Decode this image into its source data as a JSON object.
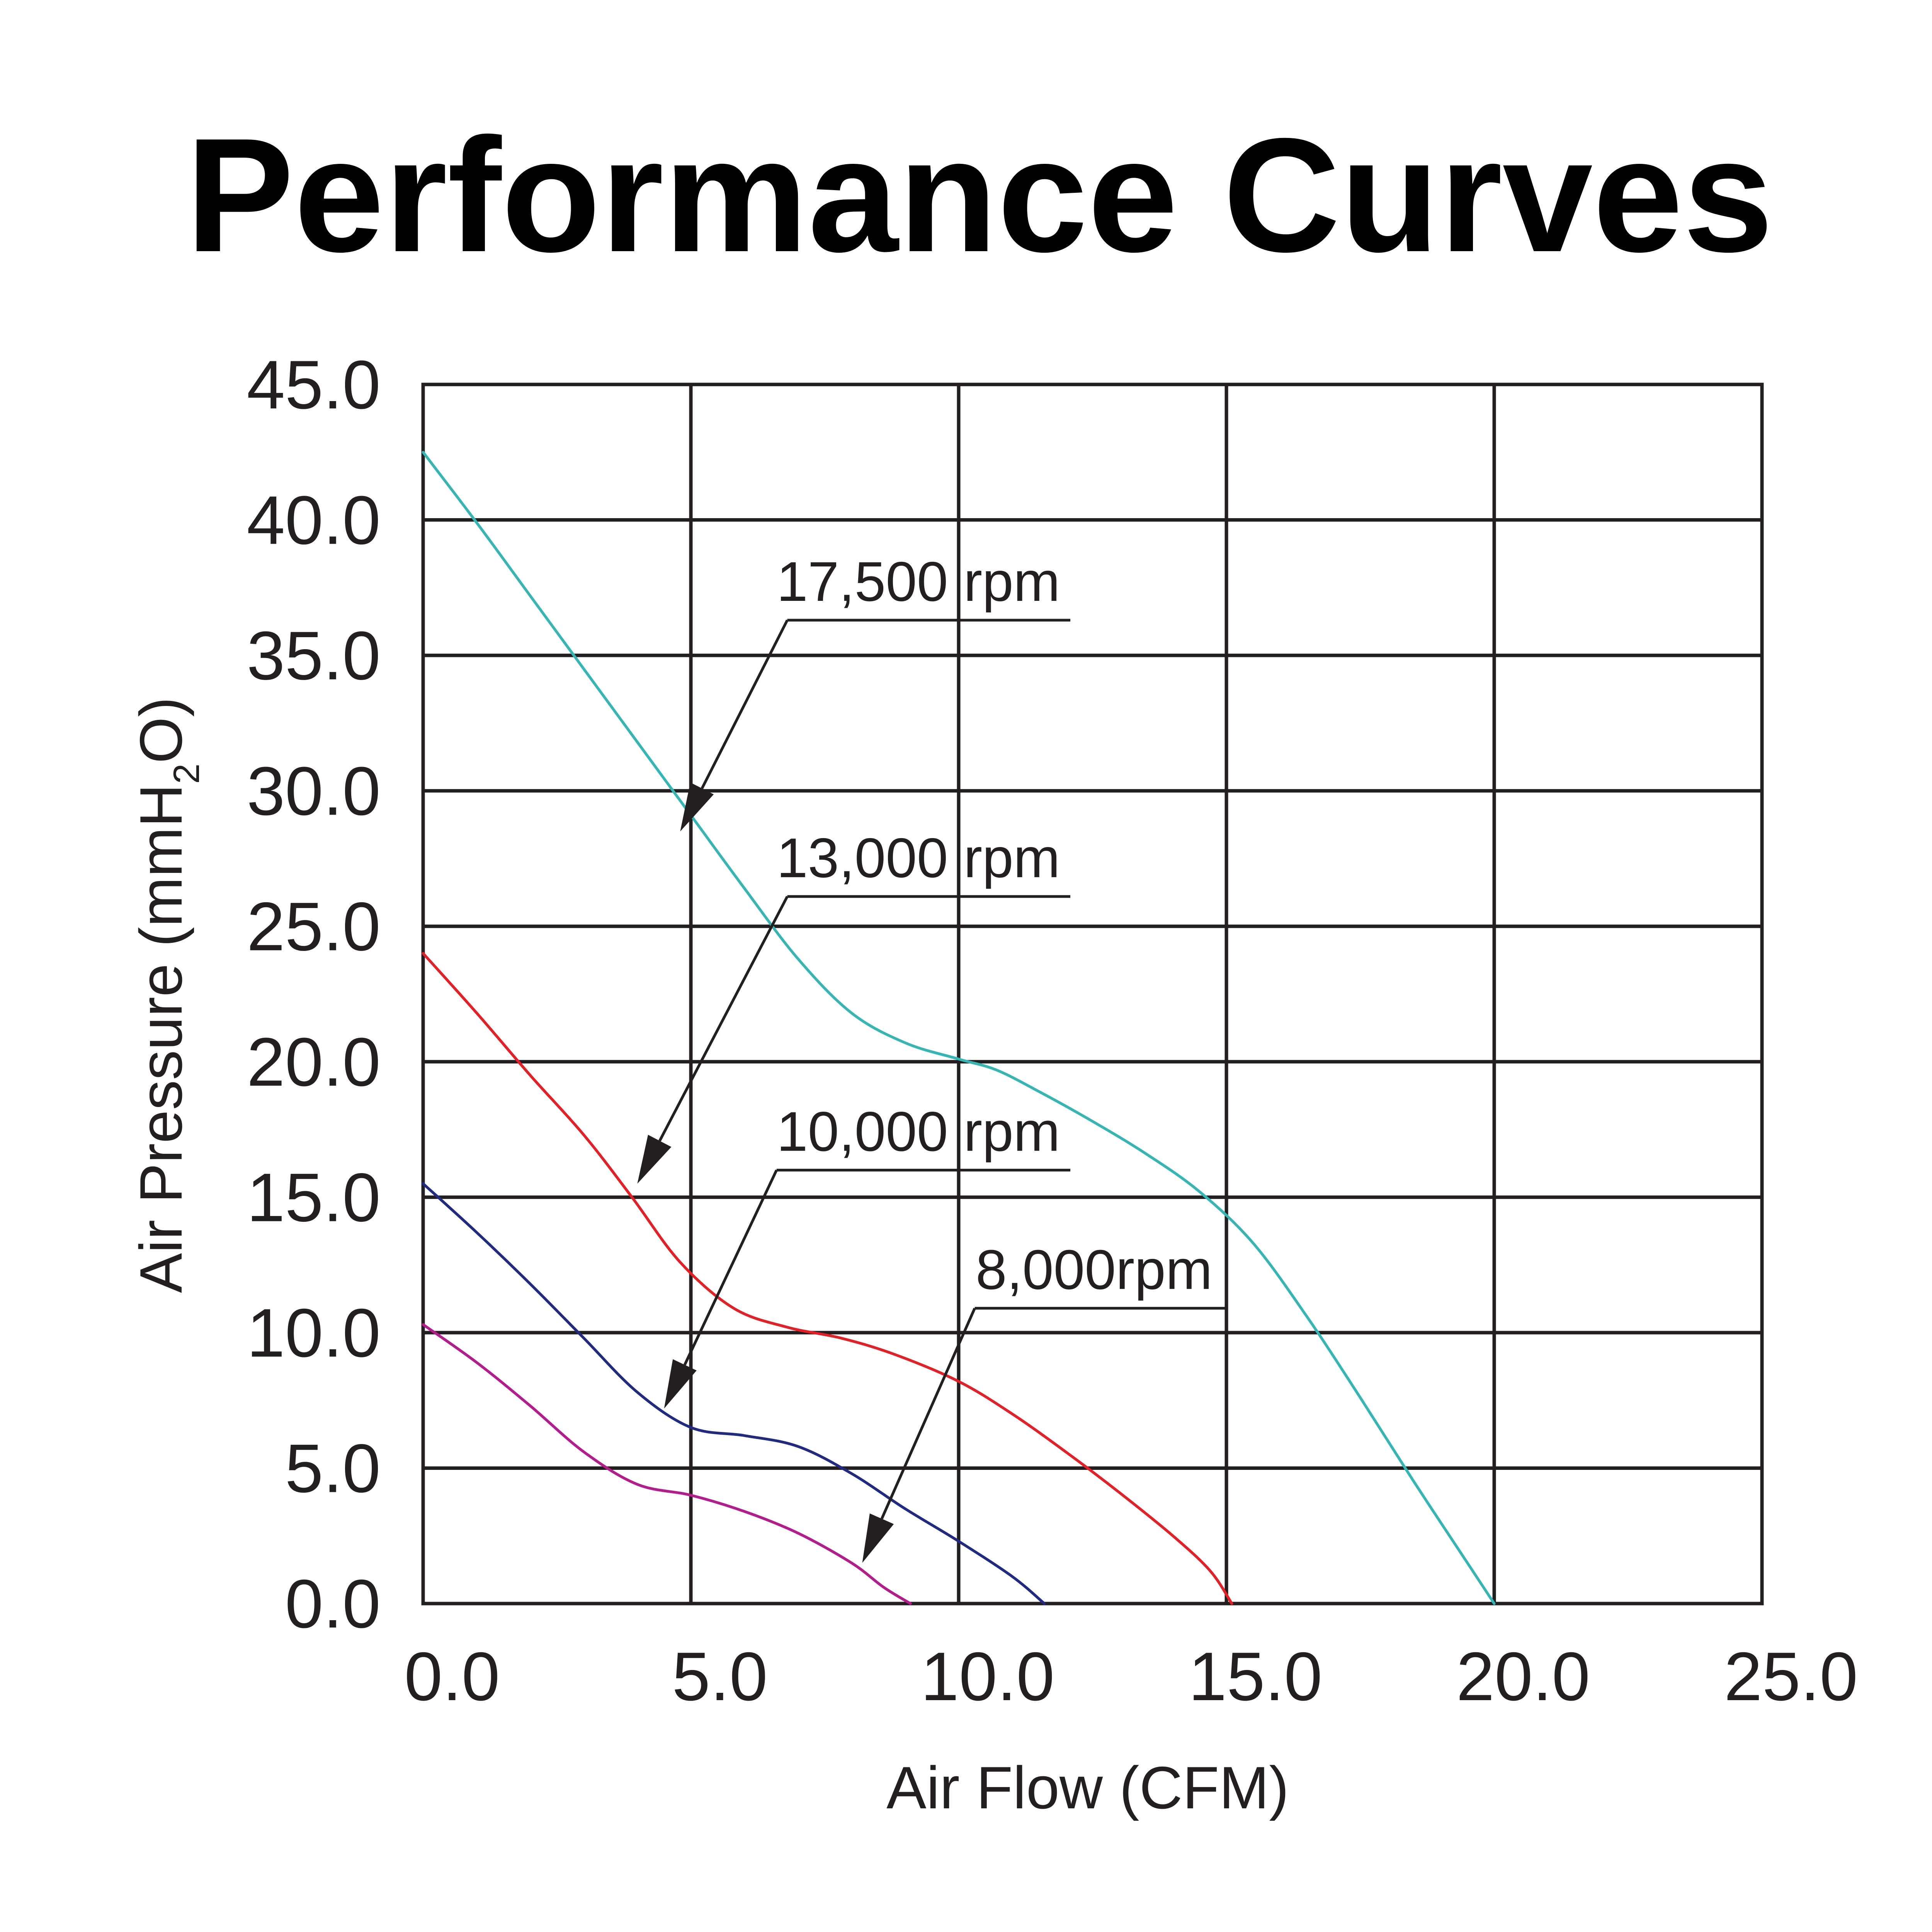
{
  "chart_data": {
    "type": "line",
    "title": "Performance Curves",
    "xlabel": "Air Flow (CFM)",
    "ylabel": {
      "prefix": "Air Pressure (mmH",
      "subscript": "2",
      "suffix": "O)"
    },
    "xlim": [
      0,
      25
    ],
    "ylim": [
      0,
      45
    ],
    "xticks": [
      0,
      5,
      10,
      15,
      20,
      25
    ],
    "xtick_labels": [
      "0.0",
      "5.0",
      "10.0",
      "15.0",
      "20.0",
      "25.0"
    ],
    "yticks": [
      0,
      5,
      10,
      15,
      20,
      25,
      30,
      35,
      40,
      45
    ],
    "ytick_labels": [
      "0.0",
      "5.0",
      "10.0",
      "15.0",
      "20.0",
      "25.0",
      "30.0",
      "35.0",
      "40.0",
      "45.0"
    ],
    "grid": true,
    "series": [
      {
        "name": "17,500 rpm",
        "color": "#36b5b5",
        "points": [
          [
            0,
            42.5
          ],
          [
            1,
            39.9
          ],
          [
            2,
            37.2
          ],
          [
            3,
            34.5
          ],
          [
            4,
            31.8
          ],
          [
            5,
            29.1
          ],
          [
            6,
            26.4
          ],
          [
            7,
            23.8
          ],
          [
            8,
            21.8
          ],
          [
            9,
            20.7
          ],
          [
            10,
            20.1
          ],
          [
            10.7,
            19.7
          ],
          [
            11.5,
            18.9
          ],
          [
            12.5,
            17.8
          ],
          [
            13.5,
            16.6
          ],
          [
            14.5,
            15.2
          ],
          [
            15.5,
            13.3
          ],
          [
            16.5,
            10.6
          ],
          [
            17.5,
            7.6
          ],
          [
            18.5,
            4.5
          ],
          [
            19.5,
            1.5
          ],
          [
            20,
            0
          ]
        ],
        "callout": {
          "label": "17,500 rpm",
          "target": [
            4.8,
            28.5
          ],
          "anchor": [
            6.8,
            36.3
          ]
        }
      },
      {
        "name": "13,000 rpm",
        "color": "#e41f26",
        "points": [
          [
            0,
            24.0
          ],
          [
            1,
            21.8
          ],
          [
            2,
            19.5
          ],
          [
            3,
            17.3
          ],
          [
            3.9,
            15.0
          ],
          [
            4.8,
            12.6
          ],
          [
            5.8,
            10.9
          ],
          [
            6.8,
            10.2
          ],
          [
            7.8,
            9.8
          ],
          [
            8.8,
            9.2
          ],
          [
            10,
            8.2
          ],
          [
            11,
            7.0
          ],
          [
            12,
            5.6
          ],
          [
            13,
            4.1
          ],
          [
            14,
            2.5
          ],
          [
            14.7,
            1.2
          ],
          [
            15.1,
            0
          ]
        ],
        "callout": {
          "label": "13,000 rpm",
          "target": [
            4.0,
            15.5
          ],
          "anchor": [
            6.8,
            26.1
          ]
        }
      },
      {
        "name": "10,000 rpm",
        "color": "#1f2a80",
        "points": [
          [
            0,
            15.5
          ],
          [
            1,
            13.7
          ],
          [
            2,
            11.8
          ],
          [
            3,
            9.8
          ],
          [
            4,
            7.8
          ],
          [
            5,
            6.5
          ],
          [
            6,
            6.2
          ],
          [
            7,
            5.8
          ],
          [
            8,
            4.8
          ],
          [
            9,
            3.5
          ],
          [
            10,
            2.3
          ],
          [
            11,
            1.0
          ],
          [
            11.6,
            0
          ]
        ],
        "callout": {
          "label": "10,000 rpm",
          "target": [
            4.5,
            7.2
          ],
          "anchor": [
            6.6,
            16.0
          ]
        }
      },
      {
        "name": "8,000rpm",
        "color": "#b41b8c",
        "points": [
          [
            0,
            10.3
          ],
          [
            1,
            8.9
          ],
          [
            2,
            7.3
          ],
          [
            3,
            5.6
          ],
          [
            4,
            4.4
          ],
          [
            5,
            4.0
          ],
          [
            6,
            3.4
          ],
          [
            7,
            2.6
          ],
          [
            8,
            1.5
          ],
          [
            8.6,
            0.6
          ],
          [
            9.1,
            0
          ]
        ],
        "callout": {
          "label": "8,000rpm",
          "target": [
            8.2,
            1.5
          ],
          "anchor": [
            10.3,
            10.9
          ]
        }
      }
    ]
  }
}
